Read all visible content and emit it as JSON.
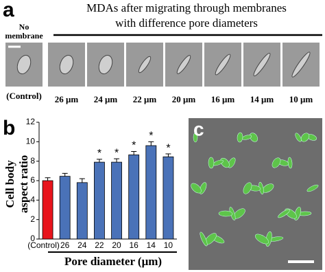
{
  "panel_a": {
    "label": "a",
    "title_lines": [
      "MDAs after migrating through membranes",
      "with difference pore diameters"
    ],
    "control_heading": [
      "No",
      "membrane"
    ],
    "images": [
      {
        "label": "(Control)"
      },
      {
        "label": "26 μm"
      },
      {
        "label": "24 μm"
      },
      {
        "label": "22 μm"
      },
      {
        "label": "20 μm"
      },
      {
        "label": "16 μm"
      },
      {
        "label": "14 μm"
      },
      {
        "label": "10 μm"
      }
    ]
  },
  "chart_data": {
    "type": "bar",
    "panel_label": "b",
    "categories": [
      "(Control)",
      "26",
      "24",
      "22",
      "20",
      "16",
      "14",
      "10"
    ],
    "values": [
      6.0,
      6.45,
      5.8,
      7.9,
      7.9,
      8.65,
      9.6,
      8.45
    ],
    "errors": [
      0.3,
      0.3,
      0.4,
      0.3,
      0.35,
      0.35,
      0.4,
      0.3
    ],
    "colors": [
      "#e8141c",
      "#4a72b8",
      "#4a72b8",
      "#4a72b8",
      "#4a72b8",
      "#4a72b8",
      "#4a72b8",
      "#4a72b8"
    ],
    "ylim": [
      0,
      12
    ],
    "yticks": [
      0,
      2,
      4,
      6,
      8,
      10,
      12
    ],
    "y_label_lines": [
      "Cell body",
      "aspect ratio"
    ],
    "x_label": "Pore diameter (μm)",
    "annotations": [
      {
        "text": "*",
        "category": "22"
      },
      {
        "text": "*",
        "category": "20"
      },
      {
        "text": "*",
        "category": "16"
      },
      {
        "text": "*",
        "category": "14"
      },
      {
        "text": "*",
        "category": "10"
      }
    ]
  },
  "panel_c": {
    "label": "c"
  }
}
